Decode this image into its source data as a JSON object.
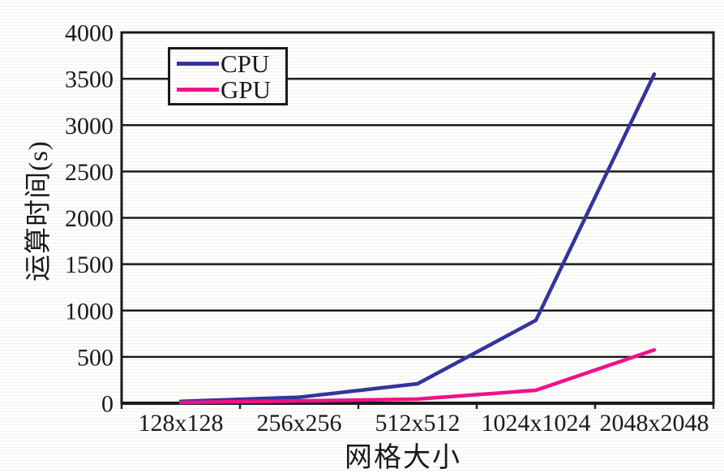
{
  "chart_data": {
    "type": "line",
    "title": "",
    "xlabel": "网格大小",
    "ylabel": "运算时间(s)",
    "categories": [
      "128x128",
      "256x256",
      "512x512",
      "1024x1024",
      "2048x2048"
    ],
    "series": [
      {
        "name": "CPU",
        "color": "#34349C",
        "values": [
          20,
          65,
          210,
          895,
          3550
        ]
      },
      {
        "name": "GPU",
        "color": "#EE1289",
        "values": [
          8,
          25,
          45,
          140,
          575
        ]
      }
    ],
    "ylim": [
      0,
      4000
    ],
    "ytick_step": 500,
    "ytick_labels": [
      "0",
      "500",
      "1000",
      "1500",
      "2000",
      "2500",
      "3000",
      "3500",
      "4000"
    ],
    "grid": "horizontal",
    "legend_position": "top-left-inside",
    "axis_color": "#1a1a1a"
  }
}
